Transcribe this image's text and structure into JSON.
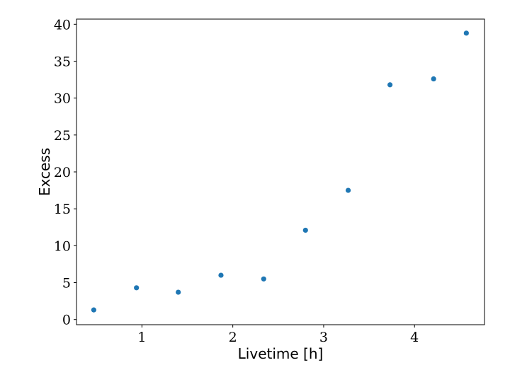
{
  "chart_data": {
    "type": "scatter",
    "title": "",
    "xlabel": "Livetime [h]",
    "ylabel": "Excess",
    "xlim": [
      0.28,
      4.77
    ],
    "ylim": [
      -0.7,
      40.7
    ],
    "xticks": [
      1,
      2,
      3,
      4
    ],
    "yticks": [
      0,
      5,
      10,
      15,
      20,
      25,
      30,
      35,
      40
    ],
    "grid": false,
    "legend": "none",
    "marker_color": "#1f77b4",
    "series": [
      {
        "x": [
          0.47,
          0.94,
          1.4,
          1.87,
          2.34,
          2.8,
          3.27,
          3.73,
          4.21,
          4.57
        ],
        "y": [
          1.3,
          4.3,
          3.7,
          6.0,
          5.5,
          12.1,
          17.5,
          31.8,
          32.6,
          38.8
        ]
      }
    ]
  }
}
